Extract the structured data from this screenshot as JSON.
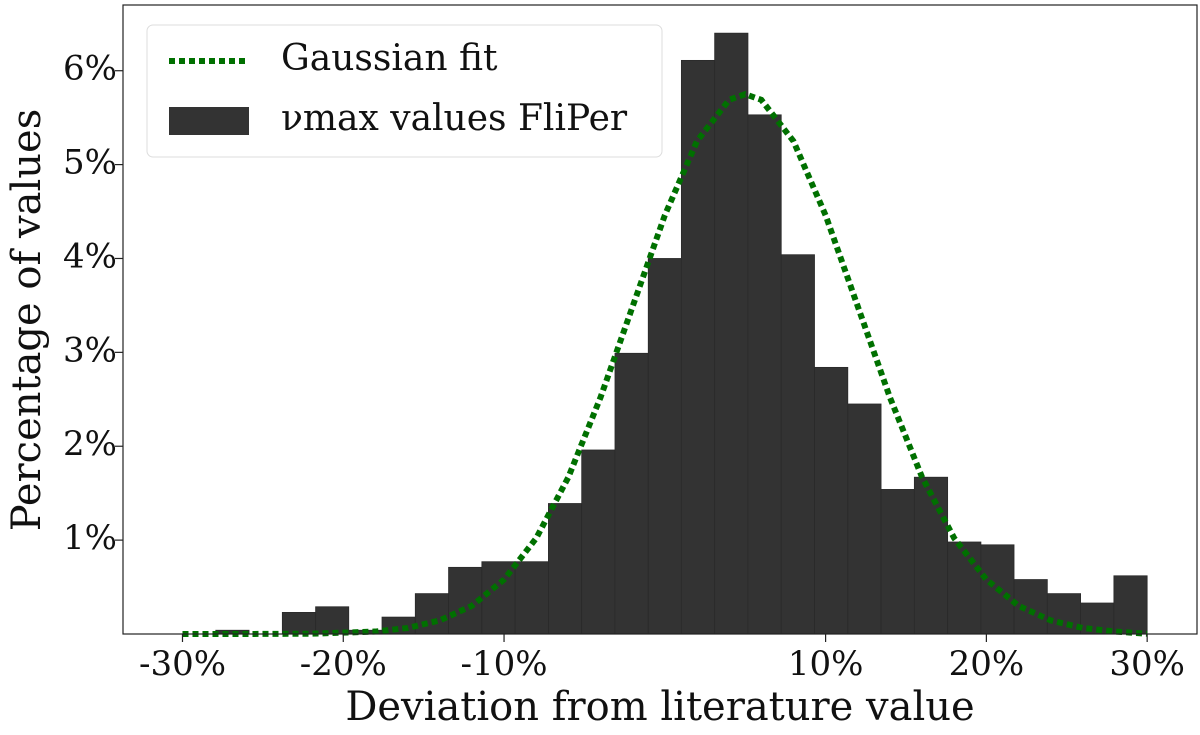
{
  "chart_data": {
    "type": "histogram",
    "xlabel": "Deviation from literature value",
    "ylabel": "Percentage of values",
    "xlim": [
      -33.7,
      33.1
    ],
    "ylim": [
      0,
      6.7
    ],
    "xticks": [
      {
        "value": -30,
        "label": "-30%"
      },
      {
        "value": -20,
        "label": "-20%"
      },
      {
        "value": -10,
        "label": "-10%"
      },
      {
        "value": 10,
        "label": "10%"
      },
      {
        "value": 20,
        "label": "20%"
      },
      {
        "value": 30,
        "label": "30%"
      }
    ],
    "yticks": [
      {
        "value": 1,
        "label": "1%"
      },
      {
        "value": 2,
        "label": "2%"
      },
      {
        "value": 3,
        "label": "3%"
      },
      {
        "value": 4,
        "label": "4%"
      },
      {
        "value": 5,
        "label": "5%"
      },
      {
        "value": 6,
        "label": "6%"
      }
    ],
    "legend": "upper left",
    "series": [
      {
        "name": "Gaussian fit",
        "type": "line",
        "color": "#007000",
        "x": [
          -30,
          -26,
          -22,
          -18,
          -16,
          -14,
          -12,
          -10,
          -8,
          -6,
          -4,
          -2,
          0,
          2,
          4,
          5,
          6,
          8,
          10,
          12,
          14,
          16,
          18,
          20,
          22,
          24,
          26,
          28,
          30
        ],
        "values": [
          0,
          0.0003,
          0.003,
          0.026,
          0.064,
          0.145,
          0.3,
          0.58,
          1.02,
          1.67,
          2.52,
          3.49,
          4.46,
          5.25,
          5.69,
          5.75,
          5.69,
          5.25,
          4.46,
          3.49,
          2.52,
          1.67,
          1.02,
          0.58,
          0.3,
          0.145,
          0.064,
          0.026,
          0.003
        ]
      },
      {
        "name": "νmax values FliPer",
        "type": "histogram",
        "color": "#333333",
        "bins": [
          -30,
          -27.93,
          -25.86,
          -23.79,
          -21.72,
          -19.66,
          -17.59,
          -15.52,
          -13.45,
          -11.38,
          -9.31,
          -7.24,
          -5.17,
          -3.1,
          -1.03,
          1.03,
          3.1,
          5.17,
          7.24,
          9.31,
          11.38,
          13.45,
          15.52,
          17.59,
          19.66,
          21.72,
          23.79,
          25.86,
          27.93,
          30
        ],
        "values": [
          0,
          0.04,
          0,
          0.23,
          0.29,
          0.04,
          0.18,
          0.43,
          0.71,
          0.77,
          0.77,
          1.39,
          1.96,
          2.99,
          4.0,
          6.11,
          6.4,
          5.53,
          4.04,
          2.84,
          2.45,
          1.54,
          1.67,
          0.98,
          0.95,
          0.58,
          0.43,
          0.33,
          0.62
        ]
      }
    ]
  }
}
